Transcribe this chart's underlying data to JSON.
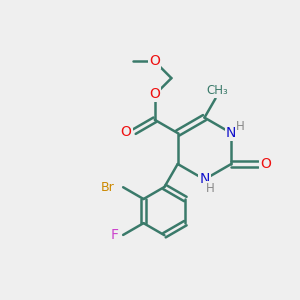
{
  "bg_color": "#efefef",
  "bond_color": "#3a7a6a",
  "atom_colors": {
    "O": "#ee1111",
    "N": "#1111cc",
    "H": "#888888",
    "Br": "#cc8800",
    "F": "#cc44cc",
    "C": "#3a7a6a"
  },
  "figsize": [
    3.0,
    3.0
  ],
  "dpi": 100
}
